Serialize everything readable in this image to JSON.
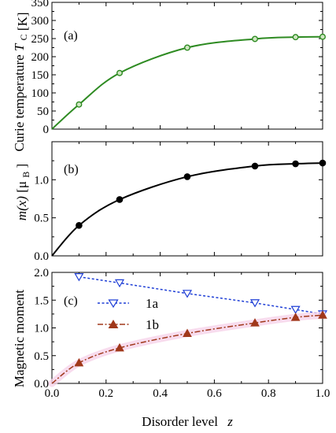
{
  "chart_data": [
    {
      "type": "line",
      "panel_label": "(a)",
      "ylabel_main": "Curie temperature",
      "ylabel_sym": "T",
      "ylabel_sub": "C",
      "ylabel_unit": "[K]",
      "xlim": [
        0.0,
        1.0
      ],
      "ylim": [
        0,
        350
      ],
      "yticks": [
        0,
        50,
        100,
        150,
        200,
        250,
        300,
        350
      ],
      "color": "#2e8b22",
      "series": [
        {
          "x": [
            0.0,
            0.1,
            0.25,
            0.5,
            0.75,
            0.9,
            1.0
          ],
          "y": [
            0,
            68,
            155,
            225,
            249,
            254,
            255
          ]
        }
      ]
    },
    {
      "type": "line",
      "panel_label": "(b)",
      "ylabel_sym": "m(x)",
      "ylabel_unit": "[μ",
      "ylabel_unit_sub": "B",
      "ylabel_unit_close": "]",
      "xlim": [
        0.0,
        1.0
      ],
      "ylim": [
        0.0,
        1.5
      ],
      "yticks": [
        0.0,
        0.5,
        1.0
      ],
      "color": "#000000",
      "series": [
        {
          "x": [
            0.0,
            0.1,
            0.25,
            0.5,
            0.75,
            0.9,
            1.0
          ],
          "y": [
            0.0,
            0.4,
            0.74,
            1.04,
            1.18,
            1.21,
            1.22
          ]
        }
      ]
    },
    {
      "type": "line",
      "panel_label": "(c)",
      "xlim": [
        0.0,
        1.0
      ],
      "ylim": [
        0.0,
        2.0
      ],
      "yticks": [
        0.0,
        0.5,
        1.0,
        1.5,
        2.0
      ],
      "xticks": [
        0.0,
        0.2,
        0.4,
        0.6,
        0.8,
        1.0
      ],
      "xtick_labels": [
        "0.0",
        "0.2",
        "0.4",
        "0.6",
        "0.8",
        "1.0"
      ],
      "xlabel": "Disorder level",
      "xlabel_sym": "z",
      "legend_position": "upper-left",
      "series": [
        {
          "name": "1a",
          "color": "#1f3fd6",
          "marker": "open-triangle-down",
          "x": [
            0.1,
            0.25,
            0.5,
            0.75,
            0.9,
            1.0
          ],
          "y": [
            1.92,
            1.81,
            1.62,
            1.45,
            1.33,
            1.25
          ]
        },
        {
          "name": "1b",
          "color": "#a0381a",
          "marker": "filled-triangle-up",
          "x": [
            0.0,
            0.1,
            0.25,
            0.5,
            0.75,
            0.9,
            1.0
          ],
          "y": [
            0.0,
            0.37,
            0.64,
            0.9,
            1.09,
            1.19,
            1.23
          ]
        }
      ]
    }
  ],
  "shared_ylabel": "Magnetic moment"
}
